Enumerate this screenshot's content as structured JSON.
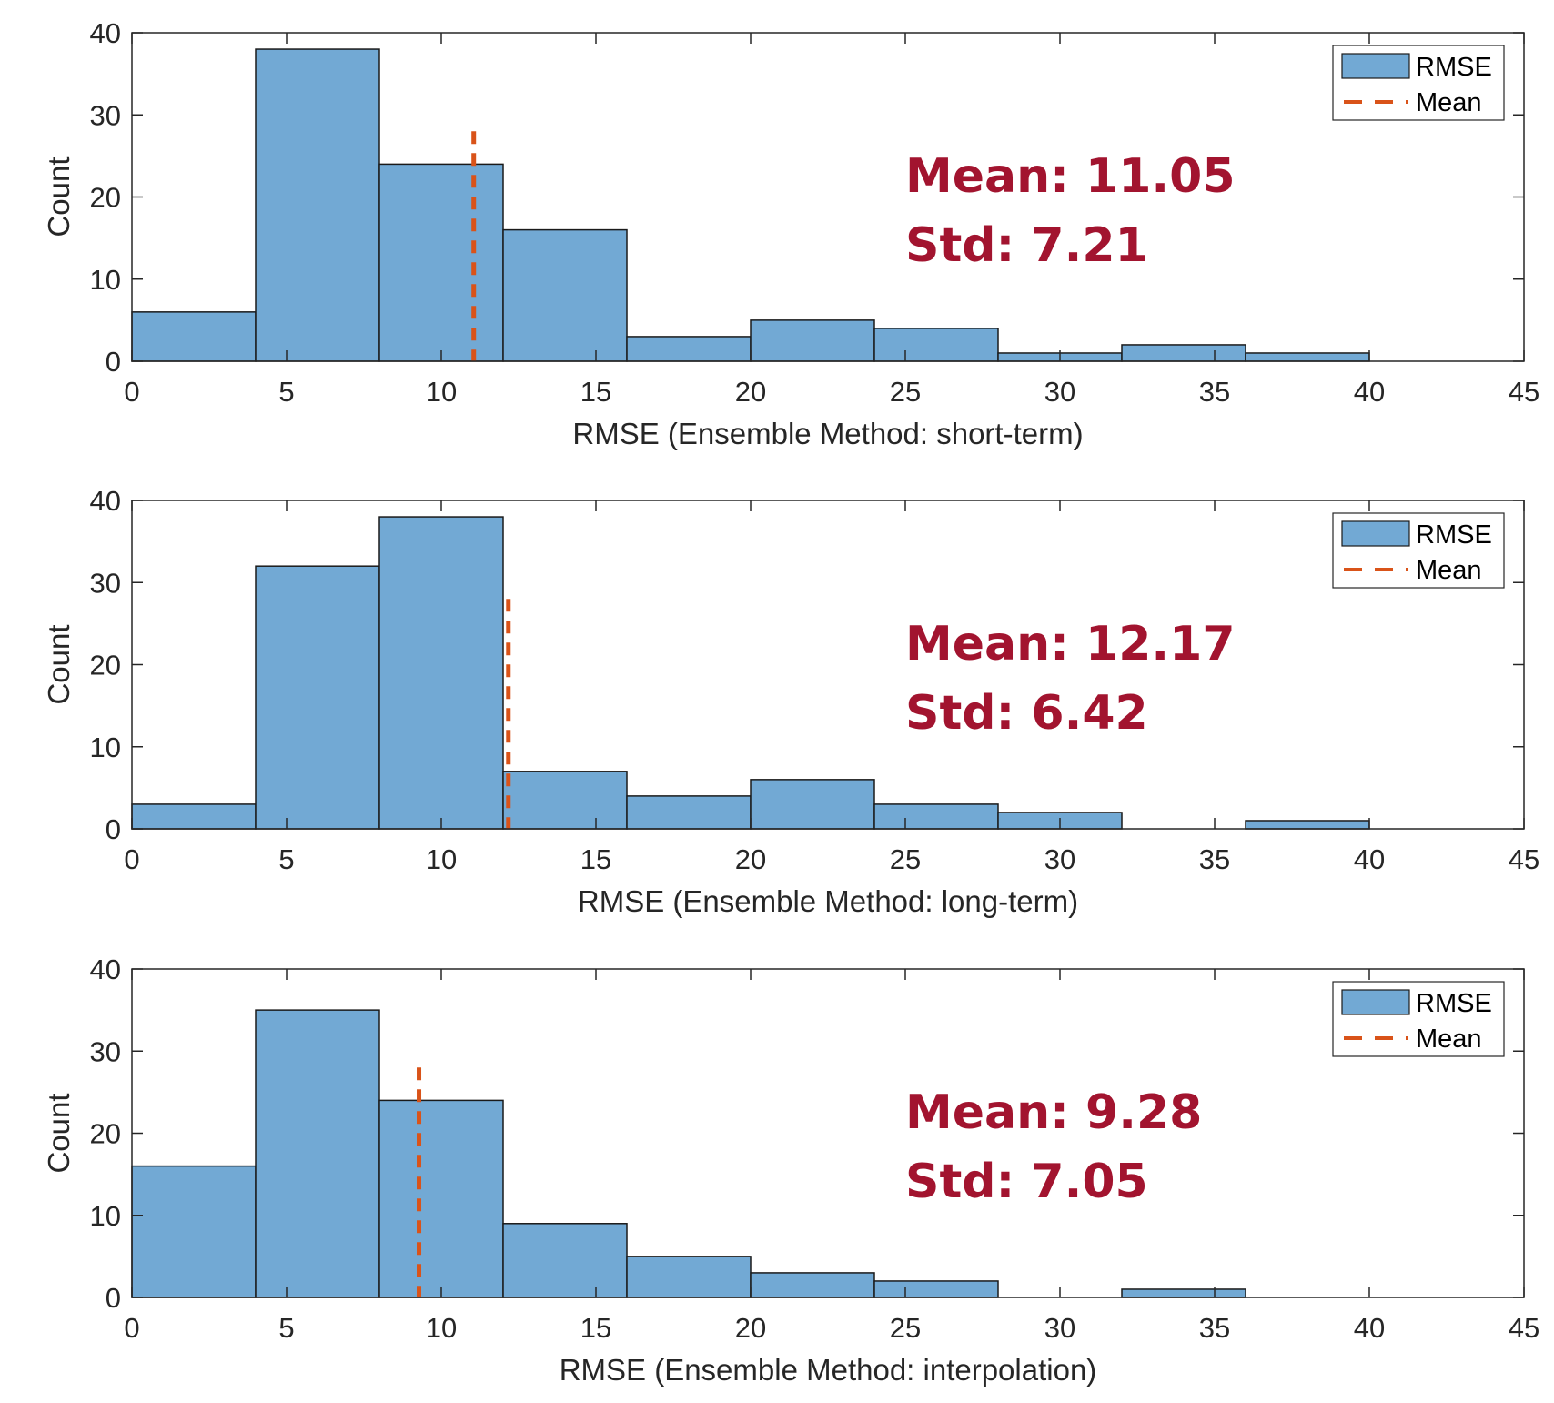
{
  "colors": {
    "bar_fill": "#72a9d4",
    "bar_edge": "#1a1a1a",
    "mean_line": "#d95319",
    "annotation": "#a2142f",
    "axis": "#262626"
  },
  "chart_data": [
    {
      "type": "bar",
      "kind": "histogram",
      "bin_edges": [
        0,
        4,
        8,
        12,
        16,
        20,
        24,
        28,
        32,
        36,
        40
      ],
      "values": [
        6,
        38,
        24,
        16,
        3,
        5,
        4,
        1,
        2,
        1
      ],
      "mean": 11.05,
      "xlabel": "RMSE (Ensemble Method: short-term)",
      "ylabel": "Count",
      "xlim": [
        0,
        45
      ],
      "ylim": [
        0,
        40
      ],
      "xticks": [
        "0",
        "5",
        "10",
        "15",
        "20",
        "25",
        "30",
        "35",
        "40",
        "45"
      ],
      "yticks": [
        "0",
        "10",
        "20",
        "30",
        "40"
      ],
      "legend": [
        "RMSE",
        "Mean"
      ],
      "legend_position": "top-right",
      "annotation": [
        "Mean: 11.05",
        "Std: 7.21"
      ]
    },
    {
      "type": "bar",
      "kind": "histogram",
      "bin_edges": [
        0,
        4,
        8,
        12,
        16,
        20,
        24,
        28,
        32,
        36,
        40
      ],
      "values": [
        3,
        32,
        38,
        7,
        4,
        6,
        3,
        2,
        0,
        1
      ],
      "mean": 12.17,
      "xlabel": "RMSE (Ensemble Method: long-term)",
      "ylabel": "Count",
      "xlim": [
        0,
        45
      ],
      "ylim": [
        0,
        40
      ],
      "xticks": [
        "0",
        "5",
        "10",
        "15",
        "20",
        "25",
        "30",
        "35",
        "40",
        "45"
      ],
      "yticks": [
        "0",
        "10",
        "20",
        "30",
        "40"
      ],
      "legend": [
        "RMSE",
        "Mean"
      ],
      "legend_position": "top-right",
      "annotation": [
        "Mean: 12.17",
        "Std: 6.42"
      ]
    },
    {
      "type": "bar",
      "kind": "histogram",
      "bin_edges": [
        0,
        4,
        8,
        12,
        16,
        20,
        24,
        28,
        32,
        36
      ],
      "values": [
        16,
        35,
        24,
        9,
        5,
        3,
        2,
        0,
        1
      ],
      "mean": 9.28,
      "xlabel": "RMSE (Ensemble Method: interpolation)",
      "ylabel": "Count",
      "xlim": [
        0,
        45
      ],
      "ylim": [
        0,
        40
      ],
      "xticks": [
        "0",
        "5",
        "10",
        "15",
        "20",
        "25",
        "30",
        "35",
        "40",
        "45"
      ],
      "yticks": [
        "0",
        "10",
        "20",
        "30",
        "40"
      ],
      "legend": [
        "RMSE",
        "Mean"
      ],
      "legend_position": "top-right",
      "annotation": [
        "Mean: 9.28",
        "Std: 7.05"
      ]
    }
  ]
}
